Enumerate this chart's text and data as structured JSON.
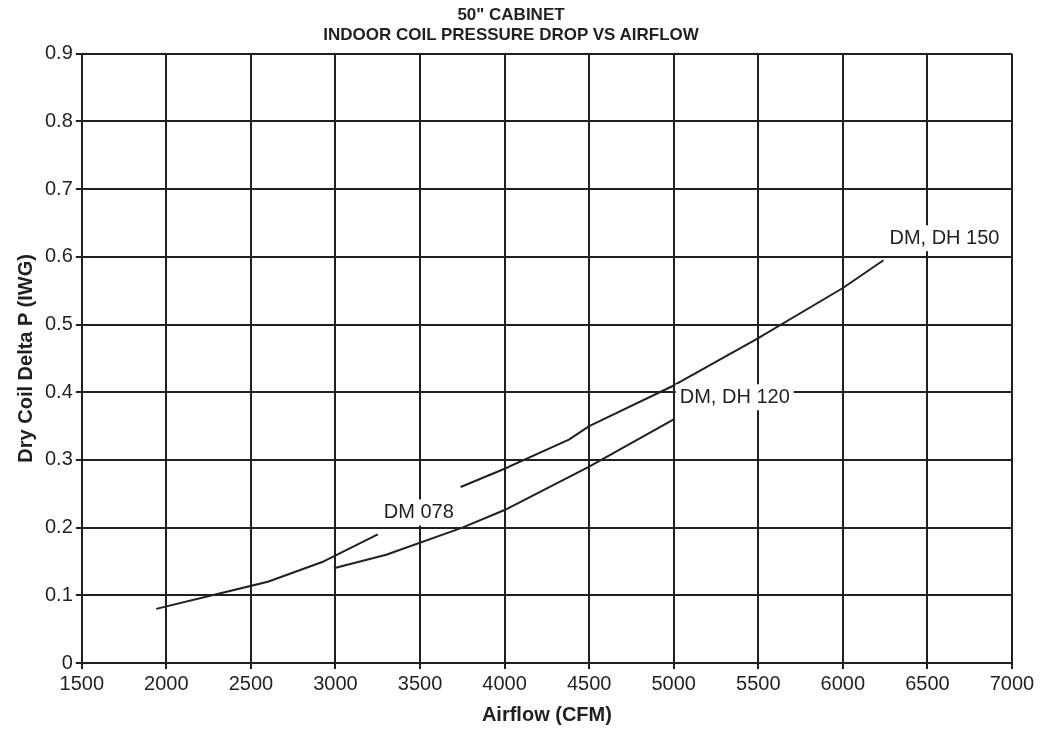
{
  "chart_data": {
    "type": "line",
    "title": [
      "50\" CABINET",
      "INDOOR COIL PRESSURE DROP VS AIRFLOW"
    ],
    "xlabel": "Airflow (CFM)",
    "ylabel": "Dry Coil Delta P (IWG)",
    "xlim": [
      1500,
      7000
    ],
    "xticks": [
      1500,
      2000,
      2500,
      3000,
      3500,
      4000,
      4500,
      5000,
      5500,
      6000,
      6500,
      7000
    ],
    "ylim": [
      0,
      0.9
    ],
    "yticks": [
      0,
      0.1,
      0.2,
      0.3,
      0.4,
      0.5,
      0.6,
      0.7,
      0.8,
      0.9
    ],
    "grid": true,
    "legend": false,
    "marker": "none",
    "line_style": "solid",
    "series": [
      {
        "name": "DM 078",
        "color": "#231f20",
        "x": [
          1940,
          2600,
          2930,
          3250
        ],
        "values": [
          0.08,
          0.12,
          0.15,
          0.19
        ]
      },
      {
        "name": "DM, DH 120",
        "color": "#231f20",
        "x": [
          2990,
          3300,
          3750,
          4000,
          4500,
          5000
        ],
        "values": [
          0.14,
          0.16,
          0.2,
          0.226,
          0.29,
          0.36
        ]
      },
      {
        "name": "DM, DH 150",
        "color": "#231f20",
        "x": [
          3740,
          4000,
          4380,
          4500,
          5000,
          5500,
          6000,
          6240
        ],
        "values": [
          0.26,
          0.287,
          0.33,
          0.35,
          0.41,
          0.48,
          0.554,
          0.595
        ]
      }
    ]
  }
}
